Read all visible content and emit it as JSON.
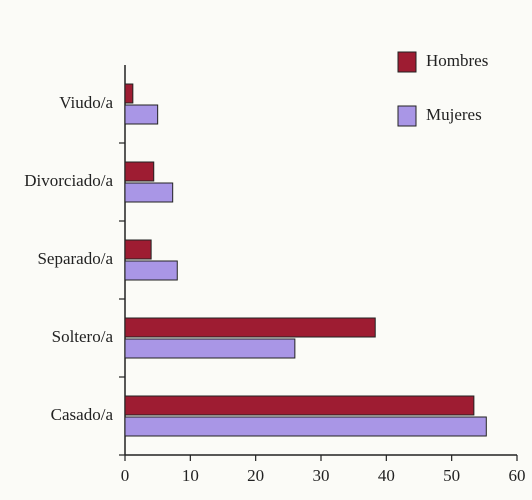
{
  "chart_data": {
    "type": "barh",
    "categories": [
      "Viudo/a",
      "Divorciado/a",
      "Separado/a",
      "Soltero/a",
      "Casado/a"
    ],
    "series": [
      {
        "name": "Hombres",
        "color": "#9e1c32",
        "values": [
          1.2,
          4.4,
          4,
          38.3,
          53.4
        ]
      },
      {
        "name": "Mujeres",
        "color": "#a996e6",
        "values": [
          5,
          7.3,
          8,
          26,
          55.3
        ]
      }
    ],
    "xlim": [
      0,
      60
    ],
    "xticks": [
      0,
      10,
      20,
      30,
      40,
      50,
      60
    ],
    "legend": "upper right"
  }
}
